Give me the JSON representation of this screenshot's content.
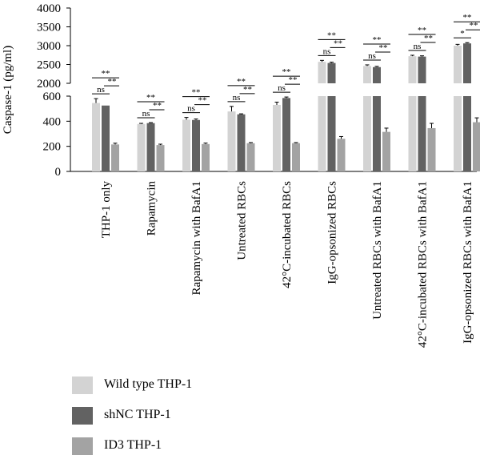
{
  "chart_data": {
    "type": "bar",
    "ylabel": "Caspase-1 (pg/ml)",
    "categories": [
      "THP-1 only",
      "Rapamycin",
      "Rapamycin with BafA1",
      "Untreated RBCs",
      "42°C-incubated RBCs",
      "IgG-opsonized RBCs",
      "Untreated RBCs with BafA1",
      "42°C-incubated RBCs with BafA1",
      "IgG-opsonized RBCs with BafA1"
    ],
    "broken_axis": {
      "lower": {
        "ylim": [
          0,
          600
        ],
        "ticks": [
          "0",
          "200",
          "400",
          "600"
        ]
      },
      "upper": {
        "ylim": [
          2000,
          4000
        ],
        "ticks": [
          "2000",
          "2500",
          "3000",
          "3500",
          "4000"
        ]
      }
    },
    "colors": {
      "Wild type THP-1": "#d3d3d3",
      "shNC THP-1": "#626262",
      "ID3 THP-1": "#a3a3a3"
    },
    "series": [
      {
        "name": "Wild type THP-1",
        "values": [
          545,
          378,
          412,
          478,
          530,
          2570,
          2460,
          2720,
          3000
        ],
        "errors": [
          35,
          5,
          18,
          40,
          22,
          40,
          30,
          25,
          35
        ]
      },
      {
        "name": "shNC THP-1",
        "values": [
          525,
          385,
          410,
          455,
          585,
          2540,
          2430,
          2710,
          3060
        ],
        "errors": [
          0,
          4,
          8,
          4,
          8,
          20,
          20,
          20,
          20
        ]
      },
      {
        "name": "ID3 THP-1",
        "values": [
          215,
          210,
          218,
          225,
          225,
          260,
          315,
          345,
          392
        ],
        "errors": [
          10,
          7,
          8,
          5,
          5,
          18,
          30,
          38,
          35
        ]
      }
    ],
    "significance": [
      {
        "upper": "**",
        "lower_left": "ns",
        "lower_right": "**"
      },
      {
        "upper": "**",
        "lower_left": "ns",
        "lower_right": "**"
      },
      {
        "upper": "**",
        "lower_left": "ns",
        "lower_right": "**"
      },
      {
        "upper": "**",
        "lower_left": "ns",
        "lower_right": "**"
      },
      {
        "upper": "**",
        "lower_left": "ns",
        "lower_right": "**"
      },
      {
        "upper": "**",
        "lower_left": "ns",
        "lower_right": "**"
      },
      {
        "upper": "**",
        "lower_left": "ns",
        "lower_right": "**"
      },
      {
        "upper": "**",
        "lower_left": "ns",
        "lower_right": "**"
      },
      {
        "upper": "**",
        "lower_left": "*",
        "lower_right": "**"
      }
    ],
    "legend": {
      "position": "bottom-left",
      "entries": [
        "Wild type THP-1",
        "shNC THP-1",
        "ID3 THP-1"
      ]
    },
    "grid": false
  }
}
